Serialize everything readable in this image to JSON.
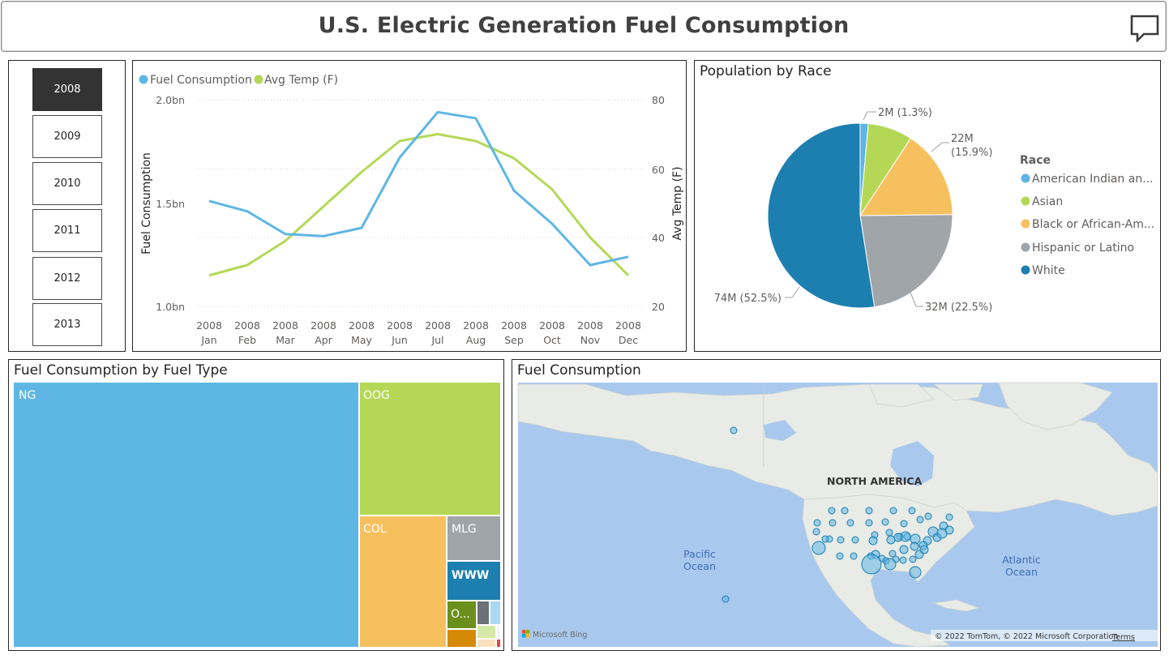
{
  "header": {
    "title": "U.S. Electric Generation Fuel Consumption",
    "icon": "comment-icon"
  },
  "year_slicer": {
    "items": [
      "2008",
      "2009",
      "2010",
      "2011",
      "2012",
      "2013"
    ],
    "selected": "2008"
  },
  "colors": {
    "blue": "#5eb6e4",
    "green": "#b4d856",
    "orange": "#f7c05e",
    "gray": "#a0a5aa",
    "darkblue": "#1c7fb0",
    "olive": "#6a8f1b"
  },
  "chart_data": [
    {
      "type": "line",
      "legend": [
        {
          "name": "Fuel Consumption",
          "color": "#5eb6e4"
        },
        {
          "name": "Avg Temp (F)",
          "color": "#b4d856"
        }
      ],
      "x_top": [
        "2008",
        "2008",
        "2008",
        "2008",
        "2008",
        "2008",
        "2008",
        "2008",
        "2008",
        "2008",
        "2008",
        "2008"
      ],
      "x_bottom": [
        "Jan",
        "Feb",
        "Mar",
        "Apr",
        "May",
        "Jun",
        "Jul",
        "Aug",
        "Sep",
        "Oct",
        "Nov",
        "Dec"
      ],
      "series": [
        {
          "name": "Fuel Consumption",
          "values": [
            1.51,
            1.46,
            1.35,
            1.34,
            1.38,
            1.72,
            1.94,
            1.91,
            1.56,
            1.4,
            1.2,
            1.24
          ]
        },
        {
          "name": "Avg Temp (F)",
          "values": [
            29,
            32,
            39,
            49,
            59,
            68,
            70,
            68,
            63,
            54,
            40,
            29
          ]
        }
      ],
      "y_left": {
        "label": "Fuel Consumption",
        "ticks": [
          "2.0bn",
          "1.5bn",
          "1.0bn"
        ],
        "range": [
          1.0,
          2.0
        ]
      },
      "y_right": {
        "label": "Avg Temp (F)",
        "ticks": [
          "80",
          "60",
          "40",
          "20"
        ],
        "range": [
          20,
          80
        ]
      },
      "grid": true,
      "legend_position": "top-left"
    },
    {
      "type": "pie",
      "title": "Population by Race",
      "legend_title": "Race",
      "slices": [
        {
          "name": "American Indian an...",
          "value": 2,
          "label": "2M (1.3%)",
          "color": "#5eb6e4"
        },
        {
          "name": "Asian",
          "value": 11,
          "label": "",
          "color": "#b4d856"
        },
        {
          "name": "Black or African-Am...",
          "value": 22,
          "label": "22M (15.9%)",
          "label_lines": [
            "22M",
            "(15.9%)"
          ],
          "color": "#f7c05e"
        },
        {
          "name": "Hispanic or Latino",
          "value": 32,
          "label": "32M (22.5%)",
          "color": "#a0a5aa"
        },
        {
          "name": "White",
          "value": 74,
          "label": "74M (52.5%)",
          "color": "#1c7fb0"
        }
      ],
      "legend_position": "right"
    },
    {
      "type": "treemap",
      "title": "Fuel Consumption by Fuel Type",
      "labels": [
        "NG",
        "OOG",
        "COL",
        "MLG",
        "WWW",
        "O..."
      ]
    }
  ],
  "map": {
    "title": "Fuel Consumption",
    "region_label": "NORTH AMERICA",
    "oceans": [
      {
        "lines": [
          "Pacific",
          "Ocean"
        ]
      },
      {
        "lines": [
          "Atlantic",
          "Ocean"
        ]
      }
    ],
    "attribution": "© 2022 TomTom, © 2022 Microsoft Corporation",
    "terms": "Terms",
    "provider": "Microsoft Bing"
  }
}
